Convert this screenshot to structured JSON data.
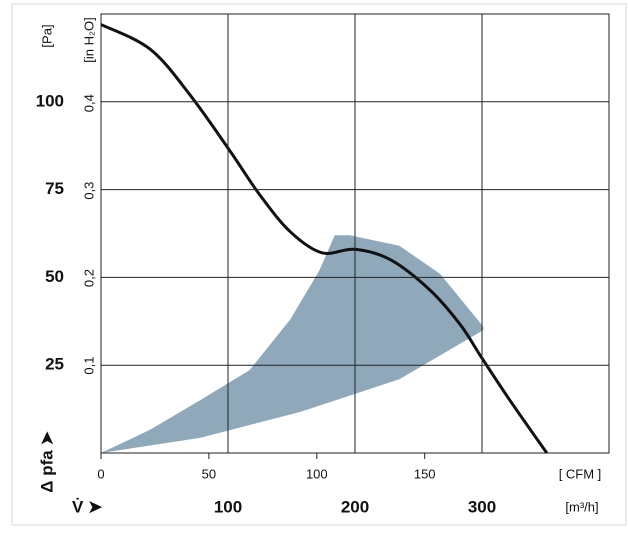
{
  "chart_data": {
    "type": "line",
    "ylabel": "[Pa]",
    "y2label": "[in H₂O]",
    "xlabel": "[m³/h]",
    "x2label": "[ CFM ]",
    "xsymbol": "V̇ ➤",
    "ysymbol": "Δ pfa ➤",
    "xlim": [
      0,
      400
    ],
    "xticks": [
      100,
      200,
      300
    ],
    "x2lim": [
      0,
      235.4
    ],
    "x2ticks": [
      0,
      50,
      100,
      150
    ],
    "ylim": [
      0,
      125
    ],
    "yticks": [
      25,
      50,
      75,
      100
    ],
    "y2lim": [
      0,
      0.502
    ],
    "y2ticks": [
      {
        "value": 0.1,
        "label": "0,1"
      },
      {
        "value": 0.2,
        "label": "0,2"
      },
      {
        "value": 0.3,
        "label": "0,3"
      },
      {
        "value": 0.4,
        "label": "0,4"
      }
    ],
    "grid": true,
    "series": [
      {
        "kind": "area",
        "color": "#8fa9bb",
        "x": [
          0,
          38.6,
          78,
          117,
          149,
          172,
          184,
          196,
          235,
          267,
          301,
          301,
          235,
          157,
          78
        ],
        "values": [
          0,
          6.6,
          15,
          23.6,
          38,
          52,
          62,
          62,
          59,
          51,
          36,
          35,
          21,
          11.7,
          4.3
        ]
      },
      {
        "kind": "line",
        "color": "#111111",
        "x": [
          0,
          38.6,
          70,
          101.6,
          125,
          149,
          174,
          200,
          228,
          259,
          283,
          300,
          322,
          351
        ],
        "values": [
          122,
          115,
          102,
          86,
          73.5,
          63,
          57,
          58,
          55,
          46.4,
          36.5,
          27,
          15,
          0
        ]
      }
    ]
  }
}
